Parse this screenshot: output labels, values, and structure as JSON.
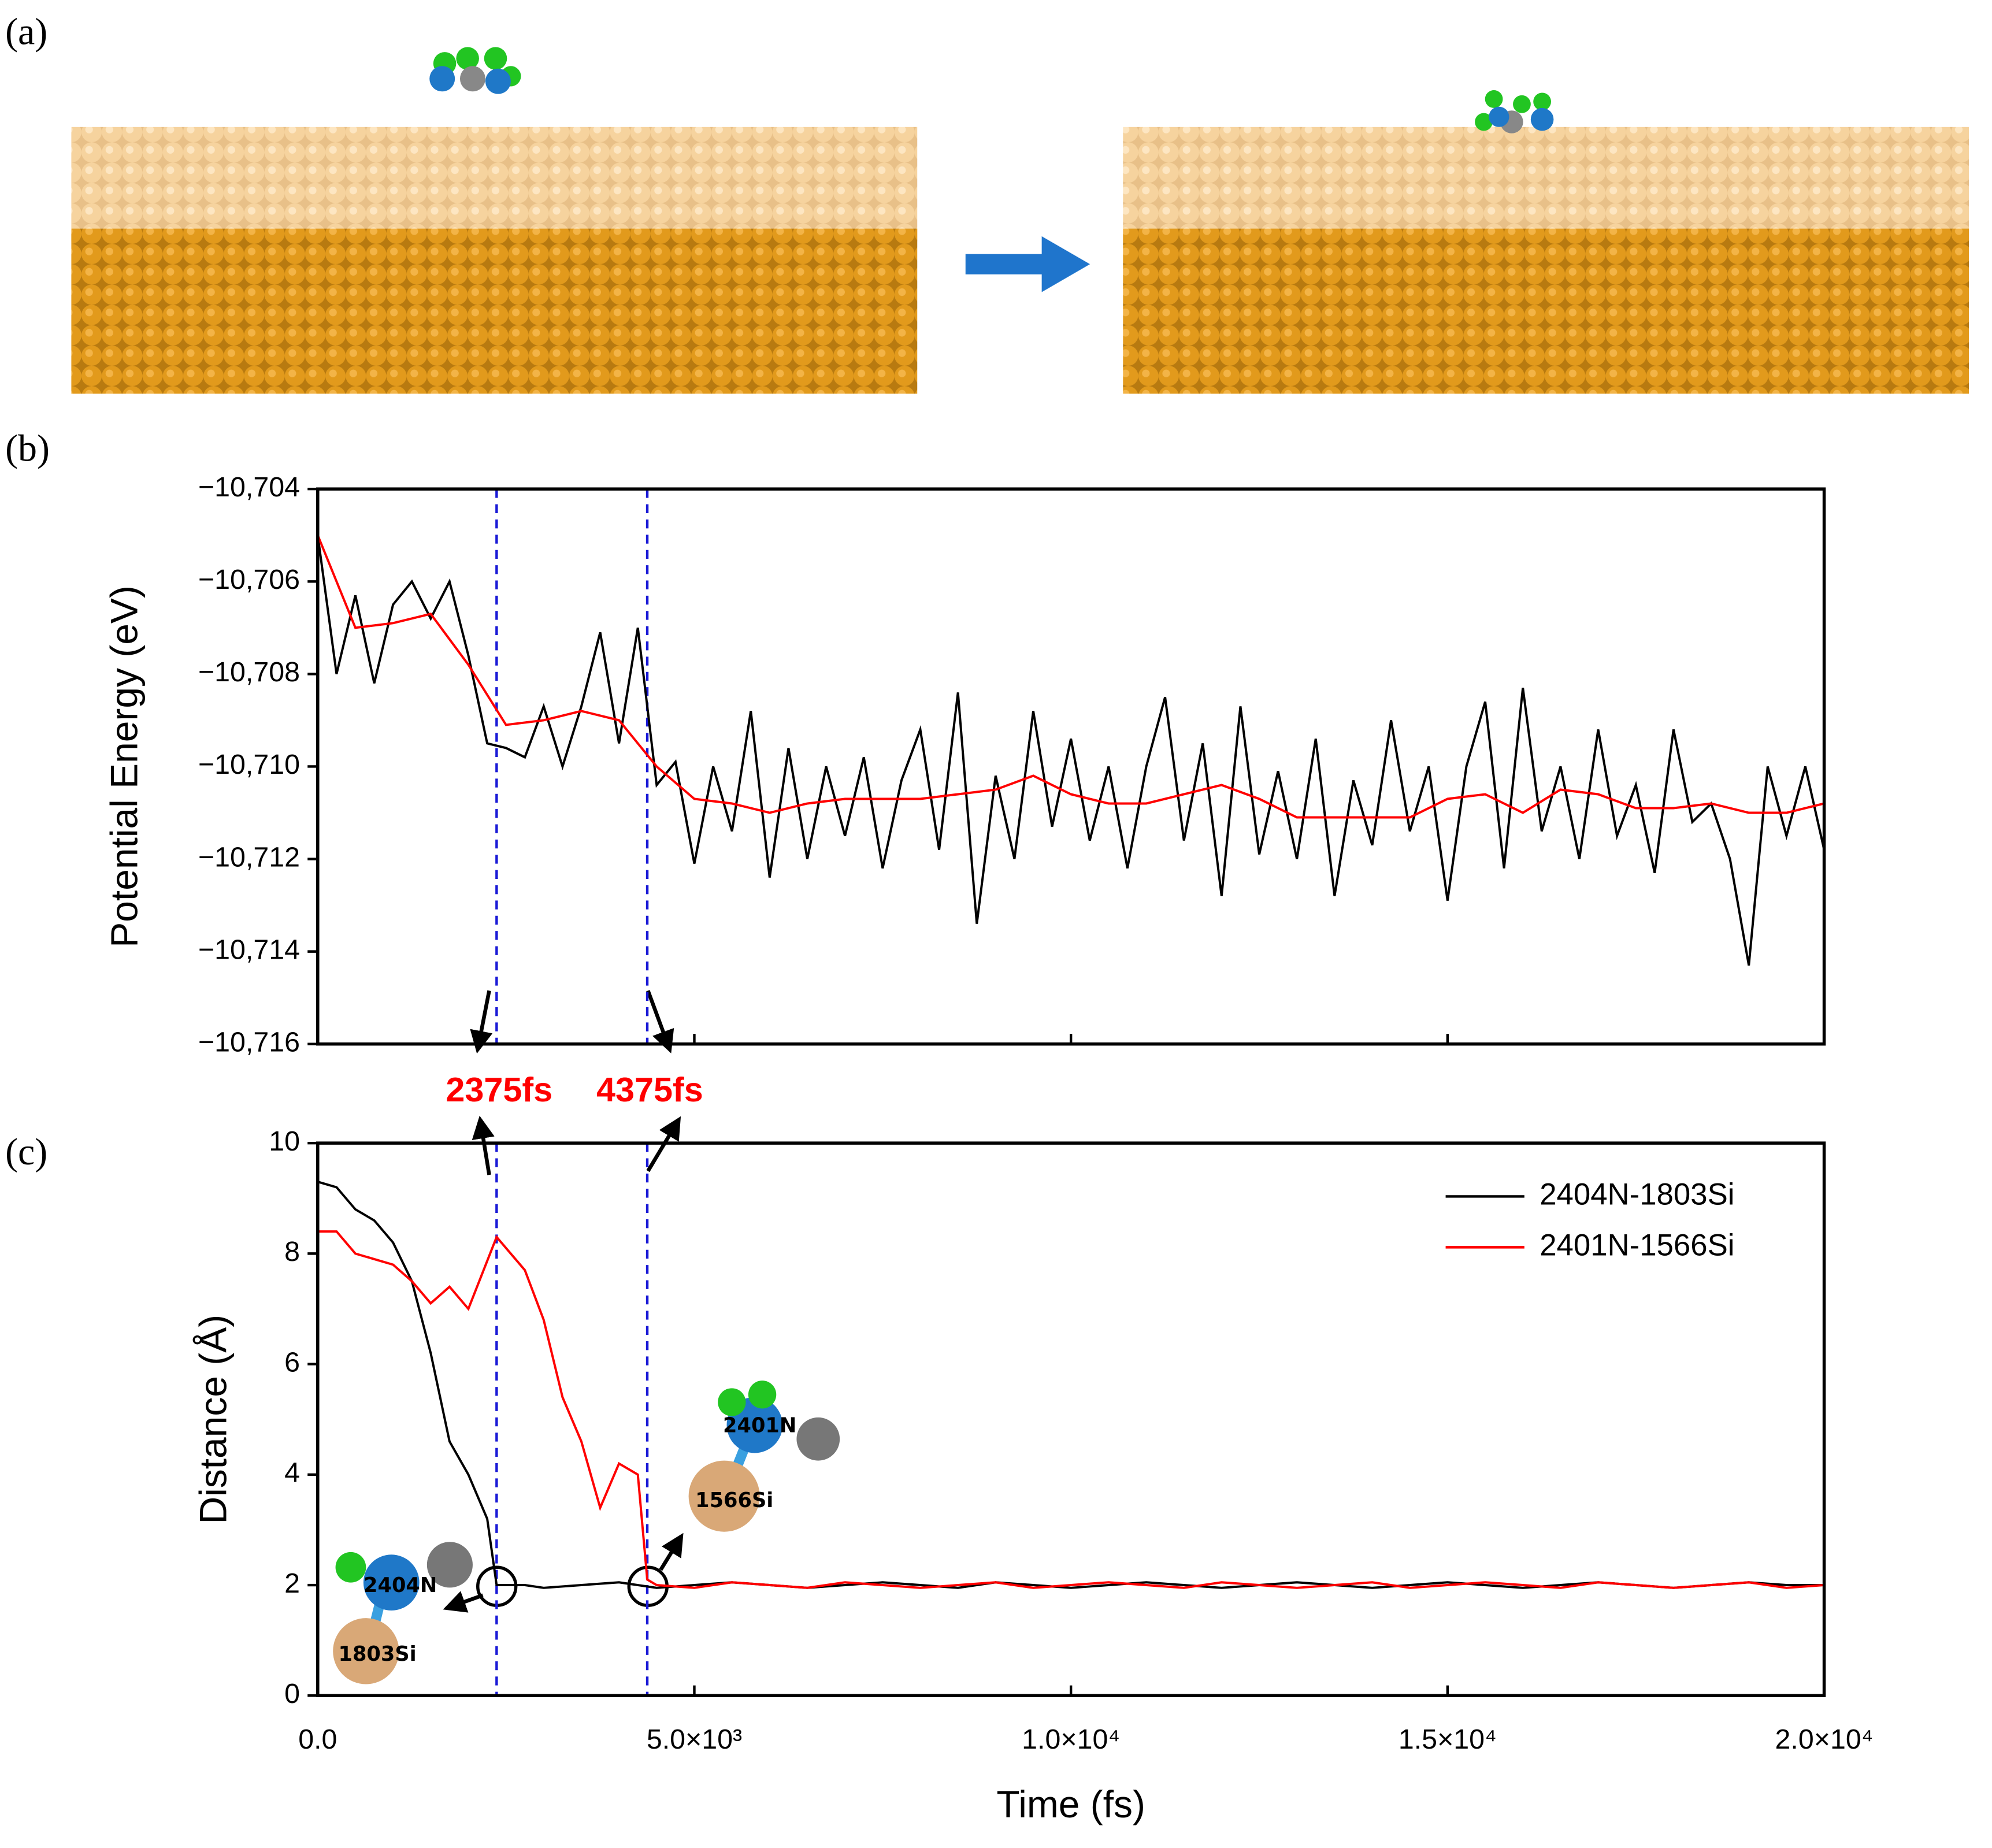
{
  "panel_labels": [
    "(a)",
    "(b)",
    "(c)"
  ],
  "illustration_labels": [
    "2404N",
    "1803Si",
    "2401N",
    "1566Si"
  ],
  "chart_data": [
    {
      "type": "line",
      "ylabel": "Potential Energy (eV)",
      "xlim": [
        0,
        20000
      ],
      "ylim": [
        -10716,
        -10704
      ],
      "xticks": [
        0,
        5000,
        10000,
        15000,
        20000
      ],
      "xtick_labels": false,
      "yticks": [
        {
          "value": -10716,
          "label": "−10,716"
        },
        {
          "value": -10714,
          "label": "−10,714"
        },
        {
          "value": -10712,
          "label": "−10,712"
        },
        {
          "value": -10710,
          "label": "−10,710"
        },
        {
          "value": -10708,
          "label": "−10,708"
        },
        {
          "value": -10706,
          "label": "−10,706"
        },
        {
          "value": -10704,
          "label": "−10,704"
        }
      ],
      "vlines": [
        {
          "value": 2375,
          "label": "2375fs"
        },
        {
          "value": 4375,
          "label": "4375fs"
        }
      ],
      "vline_color": "#1a1ad6",
      "series": [
        {
          "color": "#000000",
          "x": [
            0,
            250,
            500,
            750,
            1000,
            1250,
            1500,
            1750,
            2000,
            2250,
            2500,
            2750,
            3000,
            3250,
            3500,
            3750,
            4000,
            4250,
            4500,
            4750,
            5000,
            5250,
            5500,
            5750,
            6000,
            6250,
            6500,
            6750,
            7000,
            7250,
            7500,
            7750,
            8000,
            8250,
            8500,
            8750,
            9000,
            9250,
            9500,
            9750,
            10000,
            10250,
            10500,
            10750,
            11000,
            11250,
            11500,
            11750,
            12000,
            12250,
            12500,
            12750,
            13000,
            13250,
            13500,
            13750,
            14000,
            14250,
            14500,
            14750,
            15000,
            15250,
            15500,
            15750,
            16000,
            16250,
            16500,
            16750,
            17000,
            17250,
            17500,
            17750,
            18000,
            18250,
            18500,
            18750,
            19000,
            19250,
            19500,
            19750,
            20000
          ],
          "values": [
            -10705.0,
            -10708.0,
            -10706.3,
            -10708.2,
            -10706.5,
            -10706.0,
            -10706.8,
            -10706.0,
            -10707.6,
            -10709.5,
            -10709.6,
            -10709.8,
            -10708.7,
            -10710.0,
            -10708.7,
            -10707.1,
            -10709.5,
            -10707.0,
            -10710.4,
            -10709.9,
            -10712.1,
            -10710.0,
            -10711.4,
            -10708.8,
            -10712.4,
            -10709.6,
            -10712.0,
            -10710.0,
            -10711.5,
            -10709.8,
            -10712.2,
            -10710.3,
            -10709.2,
            -10711.8,
            -10708.4,
            -10713.4,
            -10710.2,
            -10712.0,
            -10708.8,
            -10711.3,
            -10709.4,
            -10711.6,
            -10710.0,
            -10712.2,
            -10710.0,
            -10708.5,
            -10711.6,
            -10709.5,
            -10712.8,
            -10708.7,
            -10711.9,
            -10710.1,
            -10712.0,
            -10709.4,
            -10712.8,
            -10710.3,
            -10711.7,
            -10709.0,
            -10711.4,
            -10710.0,
            -10712.9,
            -10710.0,
            -10708.6,
            -10712.2,
            -10708.3,
            -10711.4,
            -10710.0,
            -10712.0,
            -10709.2,
            -10711.5,
            -10710.4,
            -10712.3,
            -10709.2,
            -10711.2,
            -10710.8,
            -10712.0,
            -10714.3,
            -10710.0,
            -10711.5,
            -10710.0,
            -10711.8
          ]
        },
        {
          "color": "#ff0000",
          "x": [
            0,
            500,
            1000,
            1500,
            2000,
            2500,
            3000,
            3500,
            4000,
            4500,
            5000,
            5500,
            6000,
            6500,
            7000,
            7500,
            8000,
            8500,
            9000,
            9500,
            10000,
            10500,
            11000,
            11500,
            12000,
            12500,
            13000,
            13500,
            14000,
            14500,
            15000,
            15500,
            16000,
            16500,
            17000,
            17500,
            18000,
            18500,
            19000,
            19500,
            20000
          ],
          "values": [
            -10705.0,
            -10707.0,
            -10706.9,
            -10706.7,
            -10707.8,
            -10709.1,
            -10709.0,
            -10708.8,
            -10709.0,
            -10710.0,
            -10710.7,
            -10710.8,
            -10711.0,
            -10710.8,
            -10710.7,
            -10710.7,
            -10710.7,
            -10710.6,
            -10710.5,
            -10710.2,
            -10710.6,
            -10710.8,
            -10710.8,
            -10710.6,
            -10710.4,
            -10710.7,
            -10711.1,
            -10711.1,
            -10711.1,
            -10711.1,
            -10710.7,
            -10710.6,
            -10711.0,
            -10710.5,
            -10710.6,
            -10710.9,
            -10710.9,
            -10710.8,
            -10711.0,
            -10711.0,
            -10710.8
          ]
        }
      ]
    },
    {
      "type": "line",
      "xlabel": "Time (fs)",
      "ylabel": "Distance (Å)",
      "xlim": [
        0,
        20000
      ],
      "ylim": [
        0,
        10
      ],
      "xticks": [
        {
          "value": 0,
          "label": "0.0"
        },
        {
          "value": 5000,
          "label": "5.0×10³"
        },
        {
          "value": 10000,
          "label": "1.0×10⁴"
        },
        {
          "value": 15000,
          "label": "1.5×10⁴"
        },
        {
          "value": 20000,
          "label": "2.0×10⁴"
        }
      ],
      "xtick_labels": true,
      "yticks": [
        0,
        2,
        4,
        6,
        8,
        10
      ],
      "vlines": [
        2375,
        4375
      ],
      "vline_color": "#1a1ad6",
      "legend": "upper right",
      "series": [
        {
          "name": "2404N-1803Si",
          "color": "#000000",
          "x": [
            0,
            250,
            500,
            750,
            1000,
            1250,
            1500,
            1750,
            2000,
            2250,
            2375,
            2500,
            2750,
            3000,
            3500,
            4000,
            4500,
            5000,
            5500,
            6000,
            6500,
            7000,
            7500,
            8000,
            8500,
            9000,
            9500,
            10000,
            10500,
            11000,
            11500,
            12000,
            12500,
            13000,
            13500,
            14000,
            14500,
            15000,
            15500,
            16000,
            16500,
            17000,
            17500,
            18000,
            18500,
            19000,
            19500,
            20000
          ],
          "values": [
            9.3,
            9.2,
            8.8,
            8.6,
            8.2,
            7.5,
            6.2,
            4.6,
            4.0,
            3.2,
            2.0,
            2.0,
            2.0,
            1.95,
            2.0,
            2.05,
            1.95,
            2.0,
            2.05,
            2.0,
            1.95,
            2.0,
            2.05,
            2.0,
            1.95,
            2.05,
            2.0,
            1.95,
            2.0,
            2.05,
            2.0,
            1.95,
            2.0,
            2.05,
            2.0,
            1.95,
            2.0,
            2.05,
            2.0,
            1.95,
            2.0,
            2.05,
            2.0,
            1.95,
            2.0,
            2.05,
            2.0,
            2.0
          ]
        },
        {
          "name": "2401N-1566Si",
          "color": "#ff0000",
          "x": [
            0,
            250,
            500,
            750,
            1000,
            1250,
            1500,
            1750,
            2000,
            2375,
            2750,
            3000,
            3250,
            3500,
            3750,
            4000,
            4250,
            4375,
            4500,
            5000,
            5500,
            6000,
            6500,
            7000,
            7500,
            8000,
            8500,
            9000,
            9500,
            10000,
            10500,
            11000,
            11500,
            12000,
            12500,
            13000,
            13500,
            14000,
            14500,
            15000,
            15500,
            16000,
            16500,
            17000,
            17500,
            18000,
            18500,
            19000,
            19500,
            20000
          ],
          "values": [
            8.4,
            8.4,
            8.0,
            7.9,
            7.8,
            7.5,
            7.1,
            7.4,
            7.0,
            8.3,
            7.7,
            6.8,
            5.4,
            4.6,
            3.4,
            4.2,
            4.0,
            2.1,
            2.0,
            1.95,
            2.05,
            2.0,
            1.95,
            2.05,
            2.0,
            1.95,
            2.0,
            2.05,
            1.95,
            2.0,
            2.05,
            2.0,
            1.95,
            2.05,
            2.0,
            1.95,
            2.0,
            2.05,
            1.95,
            2.0,
            2.05,
            2.0,
            1.95,
            2.05,
            2.0,
            1.95,
            2.0,
            2.05,
            1.95,
            2.0
          ]
        }
      ]
    }
  ]
}
